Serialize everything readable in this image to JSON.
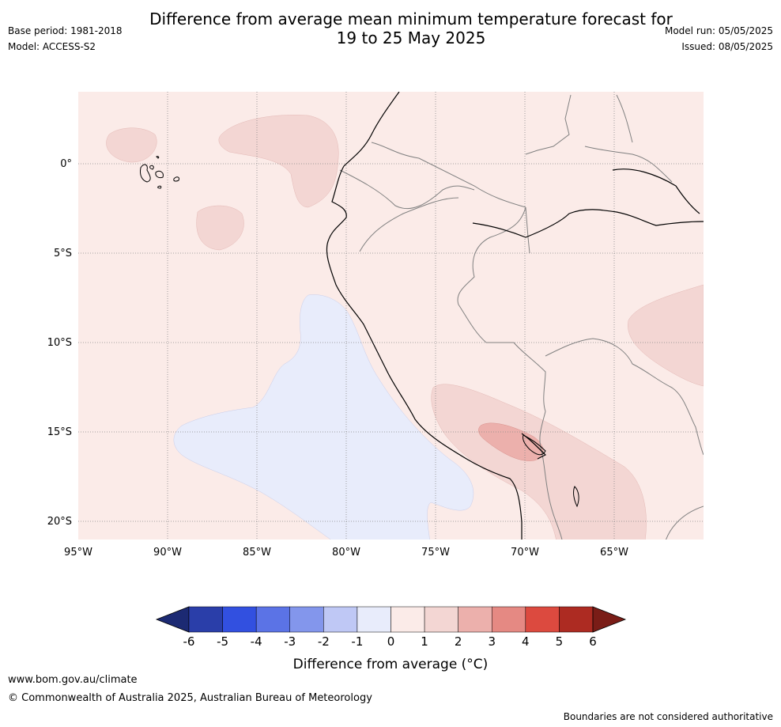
{
  "title_line1": "Difference from average mean minimum temperature forecast for",
  "title_line2": "19 to 25 May 2025",
  "meta_left": {
    "base_period": "Base period: 1981-2018",
    "model": "Model: ACCESS-S2"
  },
  "meta_right": {
    "model_run": "Model run: 05/05/2025",
    "issued": "Issued: 08/05/2025"
  },
  "map": {
    "lon_labels": [
      "95°W",
      "90°W",
      "85°W",
      "80°W",
      "75°W",
      "70°W",
      "65°W"
    ],
    "lat_labels": [
      "0°",
      "5°S",
      "10°S",
      "15°S",
      "20°S"
    ]
  },
  "colorbar": {
    "ticks": [
      "-6",
      "-5",
      "-4",
      "-3",
      "-2",
      "-1",
      "0",
      "1",
      "2",
      "3",
      "4",
      "5",
      "6"
    ],
    "colors": [
      "#2a3ea9",
      "#3250e0",
      "#5b73e6",
      "#8396ec",
      "#bfc8f5",
      "#e8ecfb",
      "#fbebe8",
      "#f3d6d3",
      "#ecb0ac",
      "#e58983",
      "#dc4a3f",
      "#ad2b22"
    ],
    "low_color": "#1c2a73",
    "high_color": "#7a1d17",
    "label": "Difference from average (°C)"
  },
  "footer": {
    "url": "www.bom.gov.au/climate",
    "copyright": "© Commonwealth of Australia 2025, Australian Bureau of Meteorology",
    "note": "Boundaries are not considered authoritative"
  }
}
